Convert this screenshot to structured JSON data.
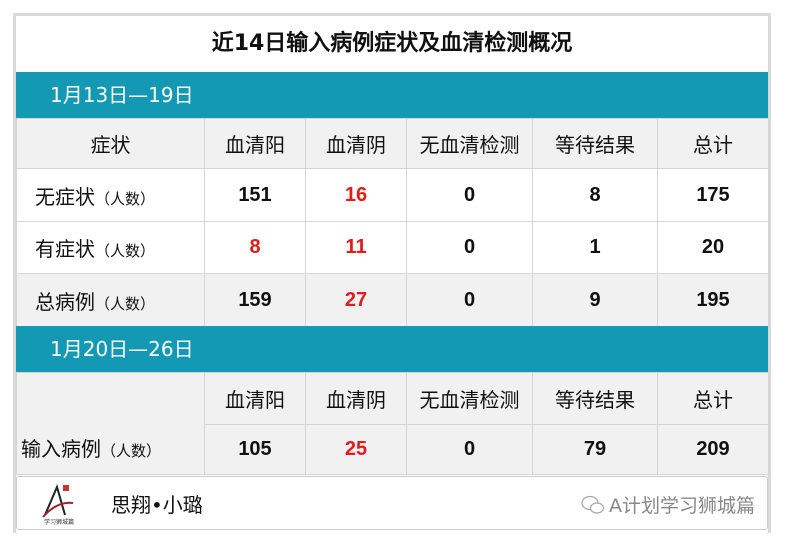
{
  "title": "近14日输入病例症状及血清检测概况",
  "colors": {
    "band": "#1399b3",
    "negative": "#e21b1b",
    "header_bg": "#f1f1f1"
  },
  "section1": {
    "label": "1月13日—19日",
    "headers": [
      "症状",
      "血清阳",
      "血清阴",
      "无血清检测",
      "等待结果",
      "总计"
    ],
    "rows": [
      {
        "label": "无症状",
        "unit": "（人数）",
        "values": [
          "151",
          "16",
          "0",
          "8",
          "175"
        ]
      },
      {
        "label": "有症状",
        "unit": "（人数）",
        "values": [
          "8",
          "11",
          "0",
          "1",
          "20"
        ]
      },
      {
        "label": "总病例",
        "unit": "（人数）",
        "values": [
          "159",
          "27",
          "0",
          "9",
          "195"
        ]
      }
    ]
  },
  "section2": {
    "label": "1月20日—26日",
    "headers": [
      "血清阳",
      "血清阴",
      "无血清检测",
      "等待结果",
      "总计"
    ],
    "rows": [
      {
        "label": "输入病例",
        "unit": "（人数）",
        "values": [
          "105",
          "25",
          "0",
          "79",
          "209"
        ]
      }
    ]
  },
  "footer": {
    "logo_text": "学习狮城篇",
    "signature": "思翔•小璐",
    "watermark": "A计划学习狮城篇",
    "watermark_icon": "wechat-icon"
  }
}
